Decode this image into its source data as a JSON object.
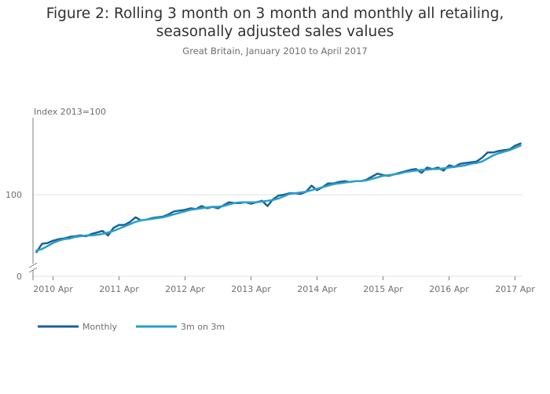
{
  "title": "Figure 2: Rolling 3 month on 3 month and monthly all retailing, seasonally adjusted sales values",
  "subtitle": "Great Britain, January 2010 to April 2017",
  "chart_data": {
    "type": "line",
    "ylabel": "Index 2013=100",
    "xlabel": "",
    "y_ticks": [
      0,
      100
    ],
    "y_axis_break": true,
    "grid": "horizontal at 100",
    "x_ticks": [
      "2010 Apr",
      "2011 Apr",
      "2012 Apr",
      "2013 Apr",
      "2014 Apr",
      "2015 Apr",
      "2016 Apr",
      "2017 Apr"
    ],
    "start_period": "2010 Jan",
    "end_period": "2017 Apr",
    "legend_position": "bottom-left",
    "colors": {
      "Monthly": "#206095",
      "3m on 3m": "#27a0cc",
      "grid": "#e0e0e0",
      "axis": "#7f7f7f"
    },
    "series": [
      {
        "name": "Monthly",
        "values": [
          62,
          67.5,
          68,
          69.5,
          70.5,
          71,
          72,
          72.5,
          73,
          72.5,
          74,
          75,
          76,
          73,
          78,
          80,
          80,
          82,
          85,
          83,
          83.5,
          84.5,
          85,
          85.5,
          87,
          89,
          89.5,
          90,
          91,
          90.5,
          92.5,
          91,
          92,
          91,
          93,
          95,
          94.5,
          94.5,
          95,
          94,
          95,
          96,
          92.5,
          97,
          99.5,
          100,
          101,
          101,
          100.5,
          102,
          106,
          103,
          105,
          107.5,
          107.5,
          108.5,
          109,
          108.5,
          109,
          109,
          110,
          112,
          114,
          113,
          112.5,
          113.5,
          114.5,
          115.5,
          116.5,
          117,
          114.5,
          118,
          117,
          118,
          116,
          119.5,
          118.5,
          120.5,
          121,
          121.5,
          122,
          124.5,
          128,
          128,
          129,
          129.5,
          130,
          132.5,
          134
        ]
      },
      {
        "name": "3m on 3m",
        "values": [
          63,
          64,
          66,
          68,
          69.5,
          70.5,
          71,
          72,
          72.5,
          73,
          73,
          73.5,
          74,
          75,
          76,
          77.5,
          79,
          80.5,
          82,
          83,
          83.5,
          84,
          84.5,
          85,
          86,
          87,
          88,
          89,
          90,
          90.5,
          91,
          91.5,
          92,
          92,
          92.5,
          93.5,
          94.5,
          95,
          95,
          95,
          95,
          95.5,
          96,
          96.5,
          97.5,
          99,
          100.5,
          101,
          101.5,
          102,
          103,
          104,
          105,
          106,
          107,
          107.5,
          108,
          108.5,
          109,
          109,
          109.5,
          110.5,
          111.5,
          112.5,
          113,
          113.5,
          114,
          115,
          115.5,
          116,
          116.5,
          116.5,
          117,
          117,
          117.5,
          118,
          118.5,
          119,
          119.5,
          120.5,
          121,
          122,
          124,
          126,
          127.5,
          128.5,
          129.5,
          131,
          132.5
        ]
      }
    ]
  }
}
